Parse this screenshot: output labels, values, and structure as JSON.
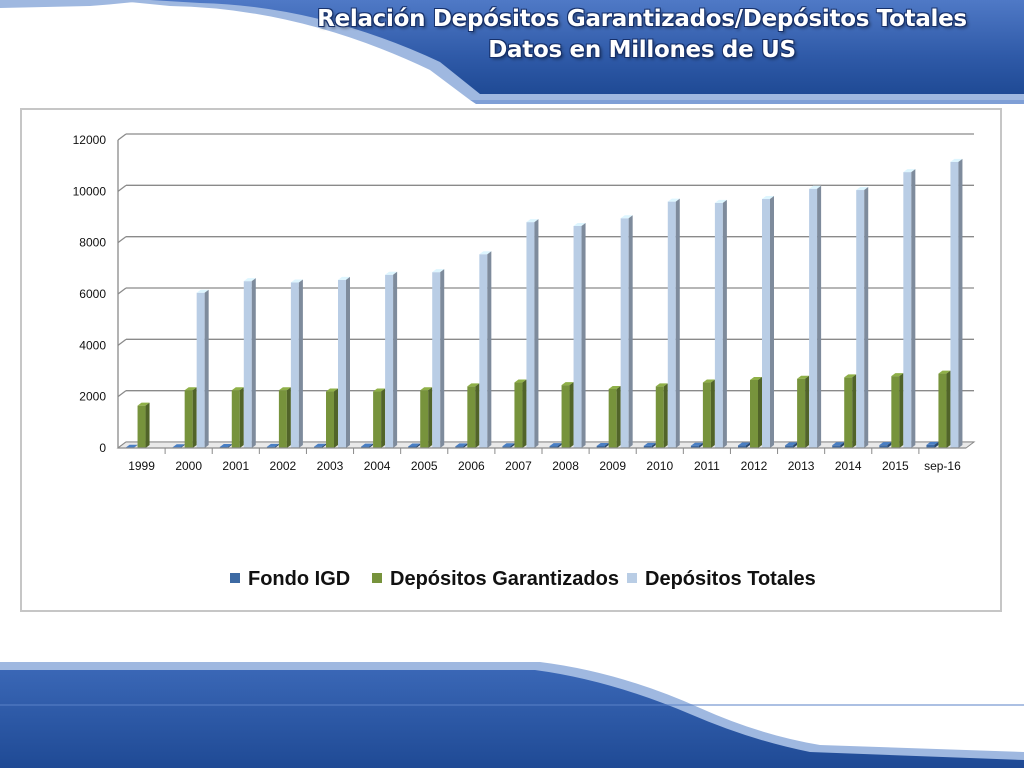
{
  "slide": {
    "title_line1": "Relación Depósitos Garantizados/Depósitos Totales",
    "title_line2": "Datos en Millones de US"
  },
  "colors": {
    "header_blue": "#2f5aa8",
    "series_fondo": "#3d6aa3",
    "series_garantizados": "#77933c",
    "series_totales": "#b9cde5",
    "gridline": "#8a8a8a"
  },
  "chart_data": {
    "type": "bar",
    "style": "3d-clustered-column",
    "title": "",
    "xlabel": "",
    "ylabel": "",
    "ylim": [
      0,
      12000
    ],
    "yticks": [
      0,
      2000,
      4000,
      6000,
      8000,
      10000,
      12000
    ],
    "grid": true,
    "legend_position": "bottom",
    "categories": [
      "1999",
      "2000",
      "2001",
      "2002",
      "2003",
      "2004",
      "2005",
      "2006",
      "2007",
      "2008",
      "2009",
      "2010",
      "2011",
      "2012",
      "2013",
      "2014",
      "2015",
      "sep-16"
    ],
    "series": [
      {
        "name": "Fondo IGD",
        "color": "#3d6aa3",
        "values": [
          10,
          30,
          40,
          45,
          50,
          55,
          60,
          65,
          70,
          75,
          80,
          85,
          90,
          95,
          100,
          105,
          110,
          120
        ]
      },
      {
        "name": "Depósitos Garantizados",
        "color": "#77933c",
        "values": [
          1650,
          2250,
          2250,
          2250,
          2200,
          2200,
          2250,
          2400,
          2550,
          2450,
          2300,
          2400,
          2550,
          2650,
          2700,
          2750,
          2800,
          2900
        ]
      },
      {
        "name": "Depósitos Totales",
        "color": "#b9cde5",
        "values": [
          0,
          6050,
          6500,
          6450,
          6550,
          6750,
          6850,
          7550,
          8800,
          8650,
          8950,
          9600,
          9550,
          9700,
          10100,
          10050,
          10750,
          11150
        ]
      }
    ]
  }
}
